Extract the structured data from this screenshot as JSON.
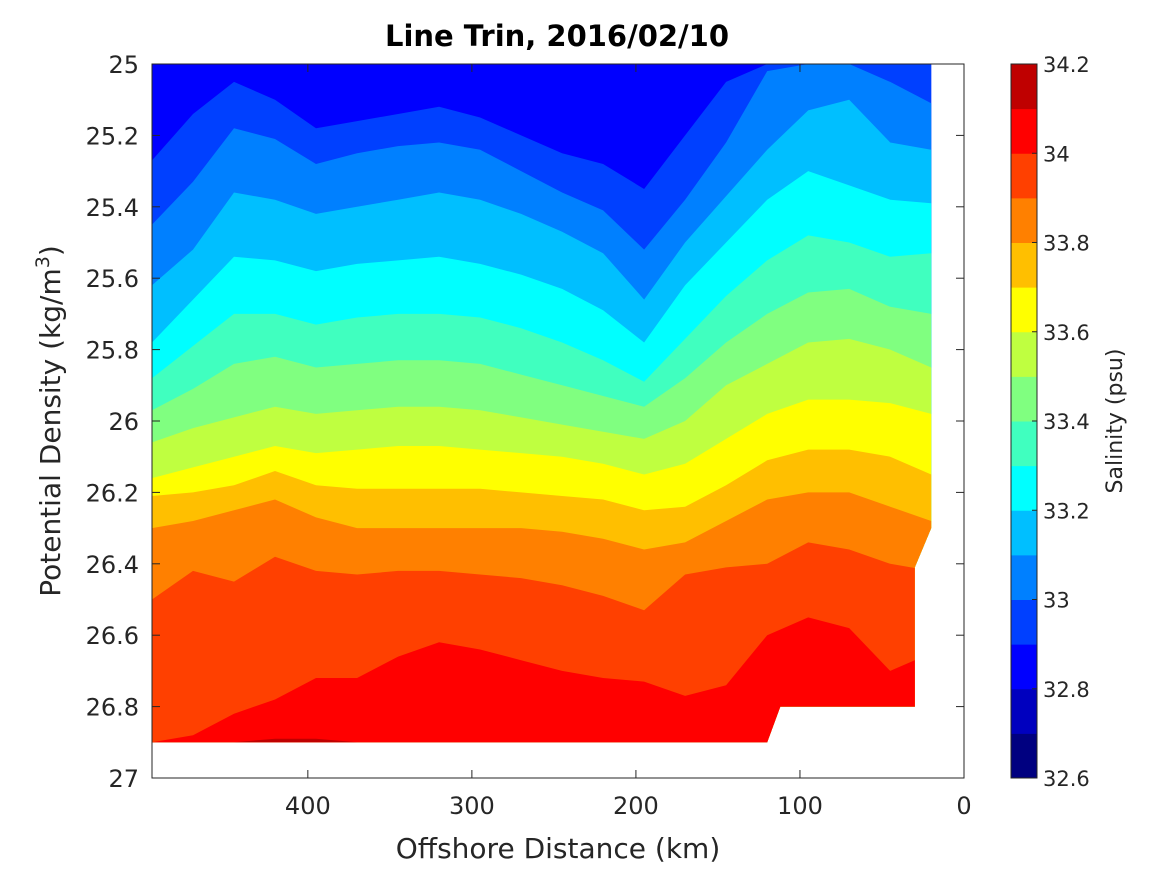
{
  "chart_data": {
    "type": "filled-contour",
    "title": "Line Trin, 2016/02/10",
    "xlabel": "Offshore Distance (km)",
    "ylabel": "Potential Density (kg/m3)",
    "ylabel_parts": {
      "main": "Potential Density (kg/m",
      "sup": "3",
      "close": ")"
    },
    "x_reversed": true,
    "xlim": [
      0,
      495
    ],
    "ylim": [
      25,
      27
    ],
    "y_reversed": true,
    "x_ticks": [
      400,
      300,
      200,
      100,
      0
    ],
    "x_tick_labels": [
      "400",
      "300",
      "200",
      "100",
      "0"
    ],
    "y_ticks": [
      25,
      25.2,
      25.4,
      25.6,
      25.8,
      26,
      26.2,
      26.4,
      26.6,
      26.8,
      27
    ],
    "y_tick_labels": [
      "25",
      "25.2",
      "25.4",
      "25.6",
      "25.8",
      "26",
      "26.2",
      "26.4",
      "26.6",
      "26.8",
      "27"
    ],
    "colorbar": {
      "label": "Salinity (psu)",
      "range": [
        32.6,
        34.2
      ],
      "step": 0.1,
      "ticks": [
        32.6,
        32.8,
        33,
        33.2,
        33.4,
        33.6,
        33.8,
        34,
        34.2
      ],
      "tick_labels": [
        "32.6",
        "32.8",
        "33",
        "33.2",
        "33.4",
        "33.6",
        "33.8",
        "34",
        "34.2"
      ],
      "colors": [
        "#000080",
        "#0000bf",
        "#0000ff",
        "#0040ff",
        "#0080ff",
        "#00bfff",
        "#00ffff",
        "#40ffbf",
        "#80ff80",
        "#bfff40",
        "#ffff00",
        "#ffbf00",
        "#ff8000",
        "#ff4000",
        "#ff0000",
        "#bf0000"
      ]
    },
    "levels": [
      32.7,
      32.8,
      32.9,
      33.0,
      33.1,
      33.2,
      33.3,
      33.4,
      33.5,
      33.6,
      33.7,
      33.8,
      33.9,
      34.0,
      34.1
    ],
    "x_stations": [
      495,
      470,
      445,
      420,
      395,
      370,
      345,
      320,
      295,
      270,
      245,
      220,
      195,
      170,
      145,
      120,
      95,
      70,
      45,
      20
    ],
    "isohalines": [
      {
        "level": 32.9,
        "sigma": [
          25.27,
          25.14,
          25.05,
          25.1,
          25.18,
          25.16,
          25.14,
          25.12,
          25.15,
          25.2,
          25.25,
          25.28,
          25.35,
          25.2,
          25.05,
          25.0,
          25.0,
          25.0,
          25.0,
          25.0
        ]
      },
      {
        "level": 33.0,
        "sigma": [
          25.45,
          25.33,
          25.18,
          25.21,
          25.28,
          25.25,
          25.23,
          25.22,
          25.24,
          25.3,
          25.36,
          25.41,
          25.52,
          25.38,
          25.22,
          25.02,
          25.0,
          25.0,
          25.05,
          25.11
        ]
      },
      {
        "level": 33.1,
        "sigma": [
          25.62,
          25.52,
          25.36,
          25.38,
          25.42,
          25.4,
          25.38,
          25.36,
          25.38,
          25.42,
          25.47,
          25.53,
          25.66,
          25.5,
          25.37,
          25.24,
          25.13,
          25.1,
          25.22,
          25.24
        ]
      },
      {
        "level": 33.2,
        "sigma": [
          25.78,
          25.66,
          25.54,
          25.55,
          25.58,
          25.56,
          25.55,
          25.54,
          25.56,
          25.59,
          25.63,
          25.69,
          25.78,
          25.62,
          25.5,
          25.38,
          25.3,
          25.34,
          25.38,
          25.39
        ]
      },
      {
        "level": 33.3,
        "sigma": [
          25.88,
          25.79,
          25.7,
          25.7,
          25.73,
          25.71,
          25.7,
          25.7,
          25.71,
          25.74,
          25.78,
          25.83,
          25.89,
          25.77,
          25.65,
          25.55,
          25.48,
          25.5,
          25.54,
          25.53
        ]
      },
      {
        "level": 33.4,
        "sigma": [
          25.97,
          25.91,
          25.84,
          25.82,
          25.85,
          25.84,
          25.83,
          25.83,
          25.84,
          25.87,
          25.9,
          25.93,
          25.96,
          25.88,
          25.78,
          25.7,
          25.64,
          25.63,
          25.68,
          25.7
        ]
      },
      {
        "level": 33.5,
        "sigma": [
          26.06,
          26.02,
          25.99,
          25.96,
          25.98,
          25.97,
          25.96,
          25.96,
          25.97,
          25.99,
          26.01,
          26.03,
          26.05,
          26.0,
          25.9,
          25.84,
          25.78,
          25.77,
          25.8,
          25.85
        ]
      },
      {
        "level": 33.6,
        "sigma": [
          26.16,
          26.13,
          26.1,
          26.07,
          26.09,
          26.08,
          26.07,
          26.07,
          26.08,
          26.09,
          26.1,
          26.12,
          26.15,
          26.12,
          26.05,
          25.98,
          25.94,
          25.94,
          25.95,
          25.98
        ]
      },
      {
        "level": 33.7,
        "sigma": [
          26.21,
          26.2,
          26.18,
          26.14,
          26.18,
          26.19,
          26.19,
          26.19,
          26.19,
          26.2,
          26.21,
          26.22,
          26.25,
          26.24,
          26.18,
          26.11,
          26.08,
          26.08,
          26.1,
          26.15
        ]
      },
      {
        "level": 33.8,
        "sigma": [
          26.3,
          26.28,
          26.25,
          26.22,
          26.27,
          26.3,
          26.3,
          26.3,
          26.3,
          26.3,
          26.31,
          26.33,
          26.36,
          26.34,
          26.28,
          26.22,
          26.2,
          26.2,
          26.24,
          26.28
        ]
      },
      {
        "level": 33.9,
        "sigma": [
          26.5,
          26.42,
          26.45,
          26.38,
          26.42,
          26.43,
          26.42,
          26.42,
          26.43,
          26.44,
          26.46,
          26.49,
          26.53,
          26.43,
          26.41,
          26.4,
          26.34,
          26.36,
          26.4,
          26.42
        ]
      },
      {
        "level": 34.0,
        "sigma": [
          26.9,
          26.88,
          26.82,
          26.78,
          26.72,
          26.72,
          26.66,
          26.62,
          26.64,
          26.67,
          26.7,
          26.72,
          26.73,
          26.77,
          26.74,
          26.6,
          26.55,
          26.58,
          26.7,
          26.65
        ]
      },
      {
        "level": 34.1,
        "sigma": [
          26.9,
          26.9,
          26.9,
          26.89,
          26.89,
          26.9,
          26.9,
          26.9,
          26.9,
          26.9,
          26.9,
          26.9,
          26.9,
          26.9,
          26.9,
          26.9,
          26.9,
          26.9,
          26.9,
          26.9
        ]
      }
    ],
    "data_boundary": [
      {
        "x": 495,
        "sigma": 25.0
      },
      {
        "x": 20,
        "sigma": 25.0
      },
      {
        "x": 20,
        "sigma": 26.3
      },
      {
        "x": 30,
        "sigma": 26.41
      },
      {
        "x": 30,
        "sigma": 26.8
      },
      {
        "x": 112,
        "sigma": 26.8
      },
      {
        "x": 120,
        "sigma": 26.9
      },
      {
        "x": 495,
        "sigma": 26.9
      }
    ]
  }
}
